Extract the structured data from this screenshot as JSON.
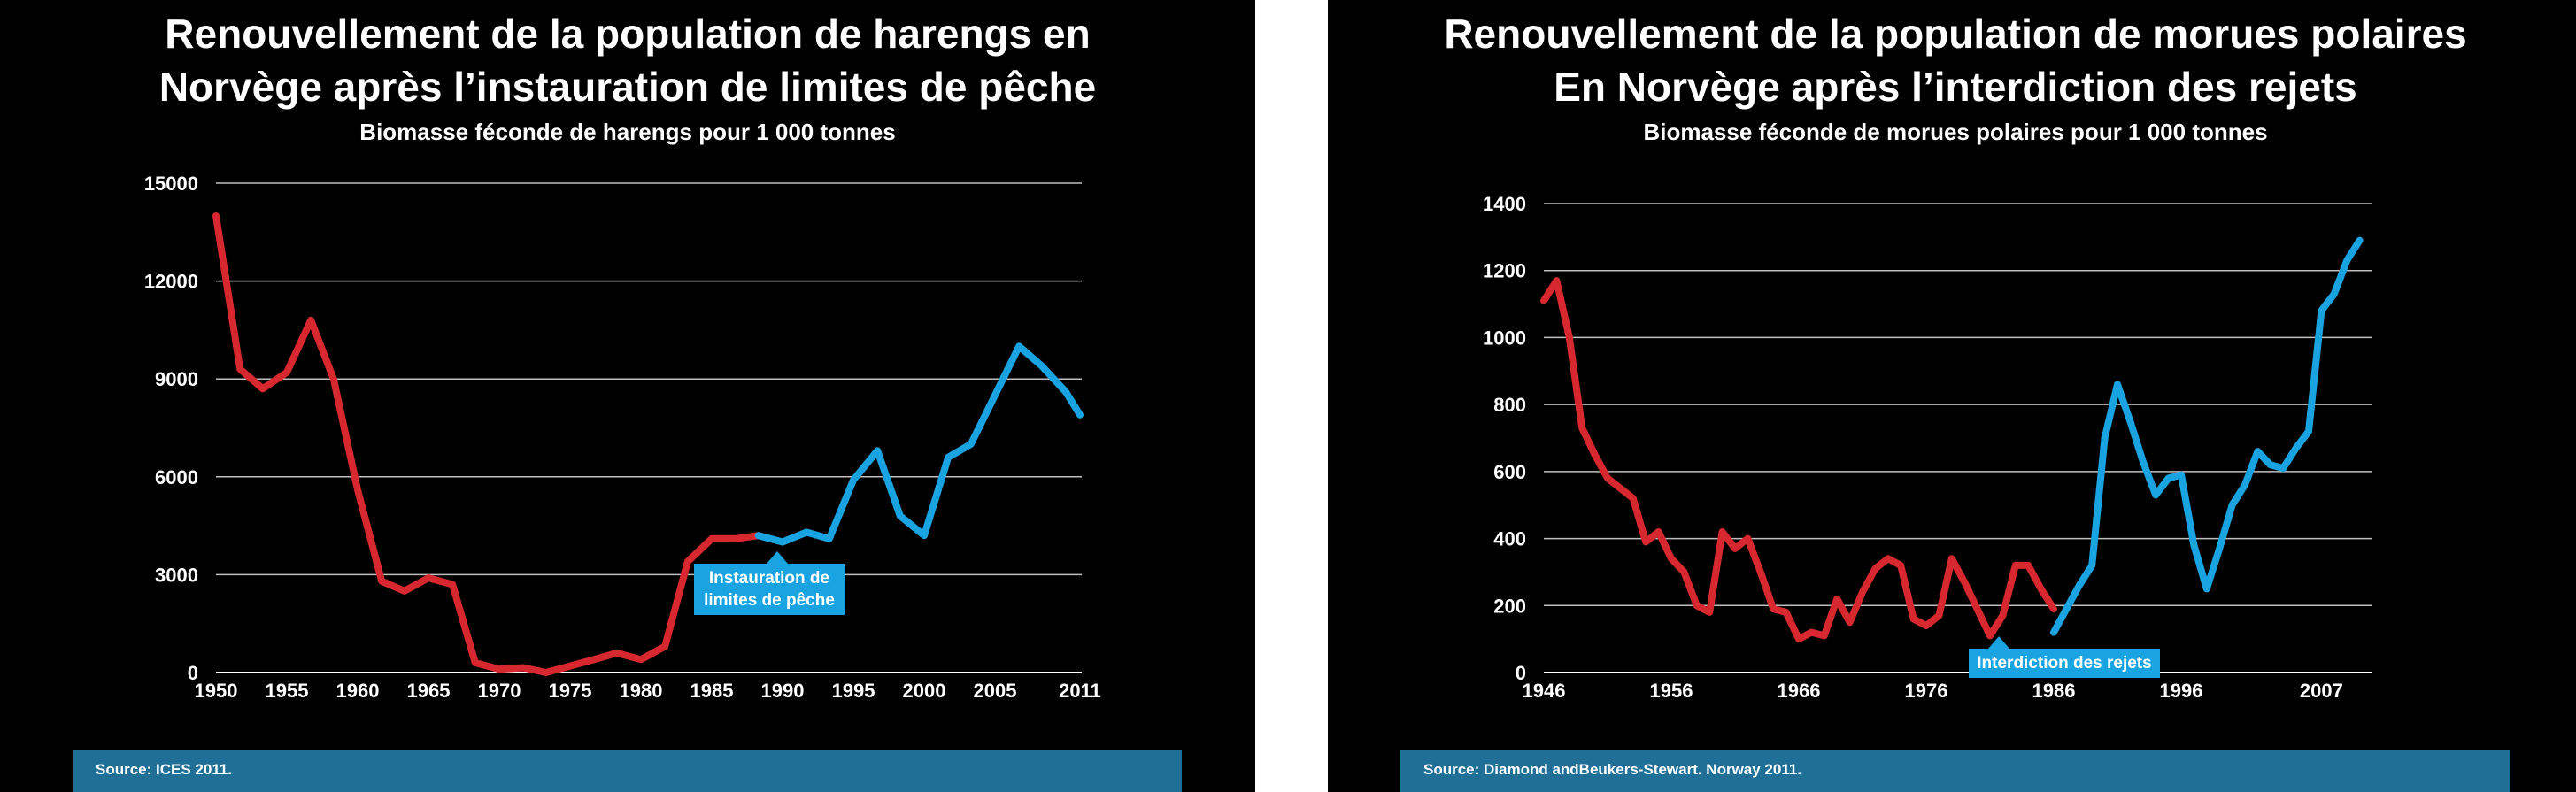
{
  "chart_data": [
    {
      "type": "line",
      "title": [
        "Renouvellement de la population de harengs en",
        "Norvège après l’instauration de limites de pêche"
      ],
      "subtitle": "Biomasse féconde de harengs  pour 1 000 tonnes",
      "xlabel": "",
      "ylabel": "",
      "xlim": [
        1950,
        2011
      ],
      "ylim": [
        0,
        15000
      ],
      "x_ticks": [
        "1950",
        "1955",
        "1960",
        "1965",
        "1970",
        "1975",
        "1980",
        "1985",
        "1990",
        "1995",
        "2000",
        "2005",
        "2011"
      ],
      "x_tick_values": [
        1950,
        1955,
        1960,
        1965,
        1970,
        1975,
        1980,
        1985,
        1990,
        1995,
        2000,
        2005,
        2011
      ],
      "y_ticks": [
        "0",
        "3000",
        "6000",
        "9000",
        "12000",
        "15000"
      ],
      "y_tick_values": [
        0,
        3000,
        6000,
        9000,
        12000,
        15000
      ],
      "grid": true,
      "annotation": "Instauration de limites de pêche",
      "source": "Source: ICES 2011.",
      "series": [
        {
          "color": "#d7282f",
          "x": [
            1950,
            1951.7,
            1953.3,
            1955,
            1956.7,
            1958.3,
            1960,
            1961.7,
            1963.3,
            1965,
            1966.7,
            1968.3,
            1970,
            1971.7,
            1973.3,
            1975,
            1976.7,
            1978.3,
            1980,
            1981.7,
            1983.3,
            1985,
            1986.7,
            1988.3
          ],
          "values": [
            14000,
            9300,
            8700,
            9200,
            10800,
            9000,
            5600,
            2800,
            2500,
            2900,
            2700,
            300,
            100,
            150,
            0,
            200,
            400,
            600,
            400,
            800,
            3400,
            4100,
            4100,
            4200
          ]
        },
        {
          "color": "#19a4e1",
          "x": [
            1988.3,
            1990,
            1991.7,
            1993.3,
            1995,
            1996.7,
            1998.3,
            2000,
            2001.7,
            2003.3,
            2005,
            2006.7,
            2008.3,
            2010,
            2011
          ],
          "values": [
            4200,
            4000,
            4300,
            4100,
            5900,
            6800,
            4800,
            4200,
            6600,
            7000,
            8500,
            10000,
            9400,
            8600,
            7900
          ]
        }
      ]
    },
    {
      "type": "line",
      "title": [
        "Renouvellement de la population de morues polaires",
        "En Norvège après l’interdiction des rejets"
      ],
      "subtitle": "Biomasse féconde de morues polaires pour 1 000 tonnes",
      "xlabel": "",
      "ylabel": "",
      "xlim": [
        1946,
        2011
      ],
      "ylim": [
        0,
        1400
      ],
      "x_ticks": [
        "1946",
        "1956",
        "1966",
        "1976",
        "1986",
        "1996",
        "2007"
      ],
      "x_tick_values": [
        1946,
        1956,
        1966,
        1976,
        1986,
        1996,
        2007
      ],
      "y_ticks": [
        "0",
        "200",
        "400",
        "600",
        "800",
        "1000",
        "1200",
        "1400"
      ],
      "y_tick_values": [
        0,
        200,
        400,
        600,
        800,
        1000,
        1200,
        1400
      ],
      "grid": true,
      "annotation": "Interdiction des rejets",
      "source": "Source: Diamond andBeukers-Stewart. Norway 2011.",
      "series": [
        {
          "color": "#d7282f",
          "x": [
            1946,
            1947,
            1948,
            1949,
            1950,
            1951,
            1952,
            1953,
            1954,
            1955,
            1956,
            1957,
            1958,
            1959,
            1960,
            1961,
            1962,
            1963,
            1964,
            1965,
            1966,
            1967,
            1968,
            1969,
            1970,
            1971,
            1972,
            1973,
            1974,
            1975,
            1976,
            1977,
            1978,
            1979,
            1980,
            1981,
            1982,
            1983,
            1984,
            1985,
            1986
          ],
          "values": [
            1110,
            1170,
            1000,
            730,
            650,
            580,
            550,
            520,
            390,
            420,
            340,
            300,
            200,
            180,
            420,
            370,
            400,
            300,
            190,
            180,
            100,
            120,
            110,
            220,
            150,
            240,
            310,
            340,
            320,
            160,
            140,
            170,
            340,
            270,
            190,
            110,
            170,
            320,
            320,
            250,
            190
          ]
        },
        {
          "color": "#19a4e1",
          "x": [
            1986,
            1987,
            1988,
            1989,
            1990,
            1991,
            1992,
            1993,
            1994,
            1995,
            1996,
            1997,
            1998,
            1999,
            2000,
            2001,
            2002,
            2003,
            2004,
            2005,
            2006,
            2007,
            2008,
            2009,
            2010
          ],
          "values": [
            120,
            190,
            260,
            320,
            700,
            860,
            750,
            630,
            530,
            580,
            590,
            380,
            250,
            370,
            500,
            560,
            660,
            620,
            610,
            670,
            720,
            1080,
            1130,
            1230,
            1290
          ]
        }
      ]
    }
  ]
}
